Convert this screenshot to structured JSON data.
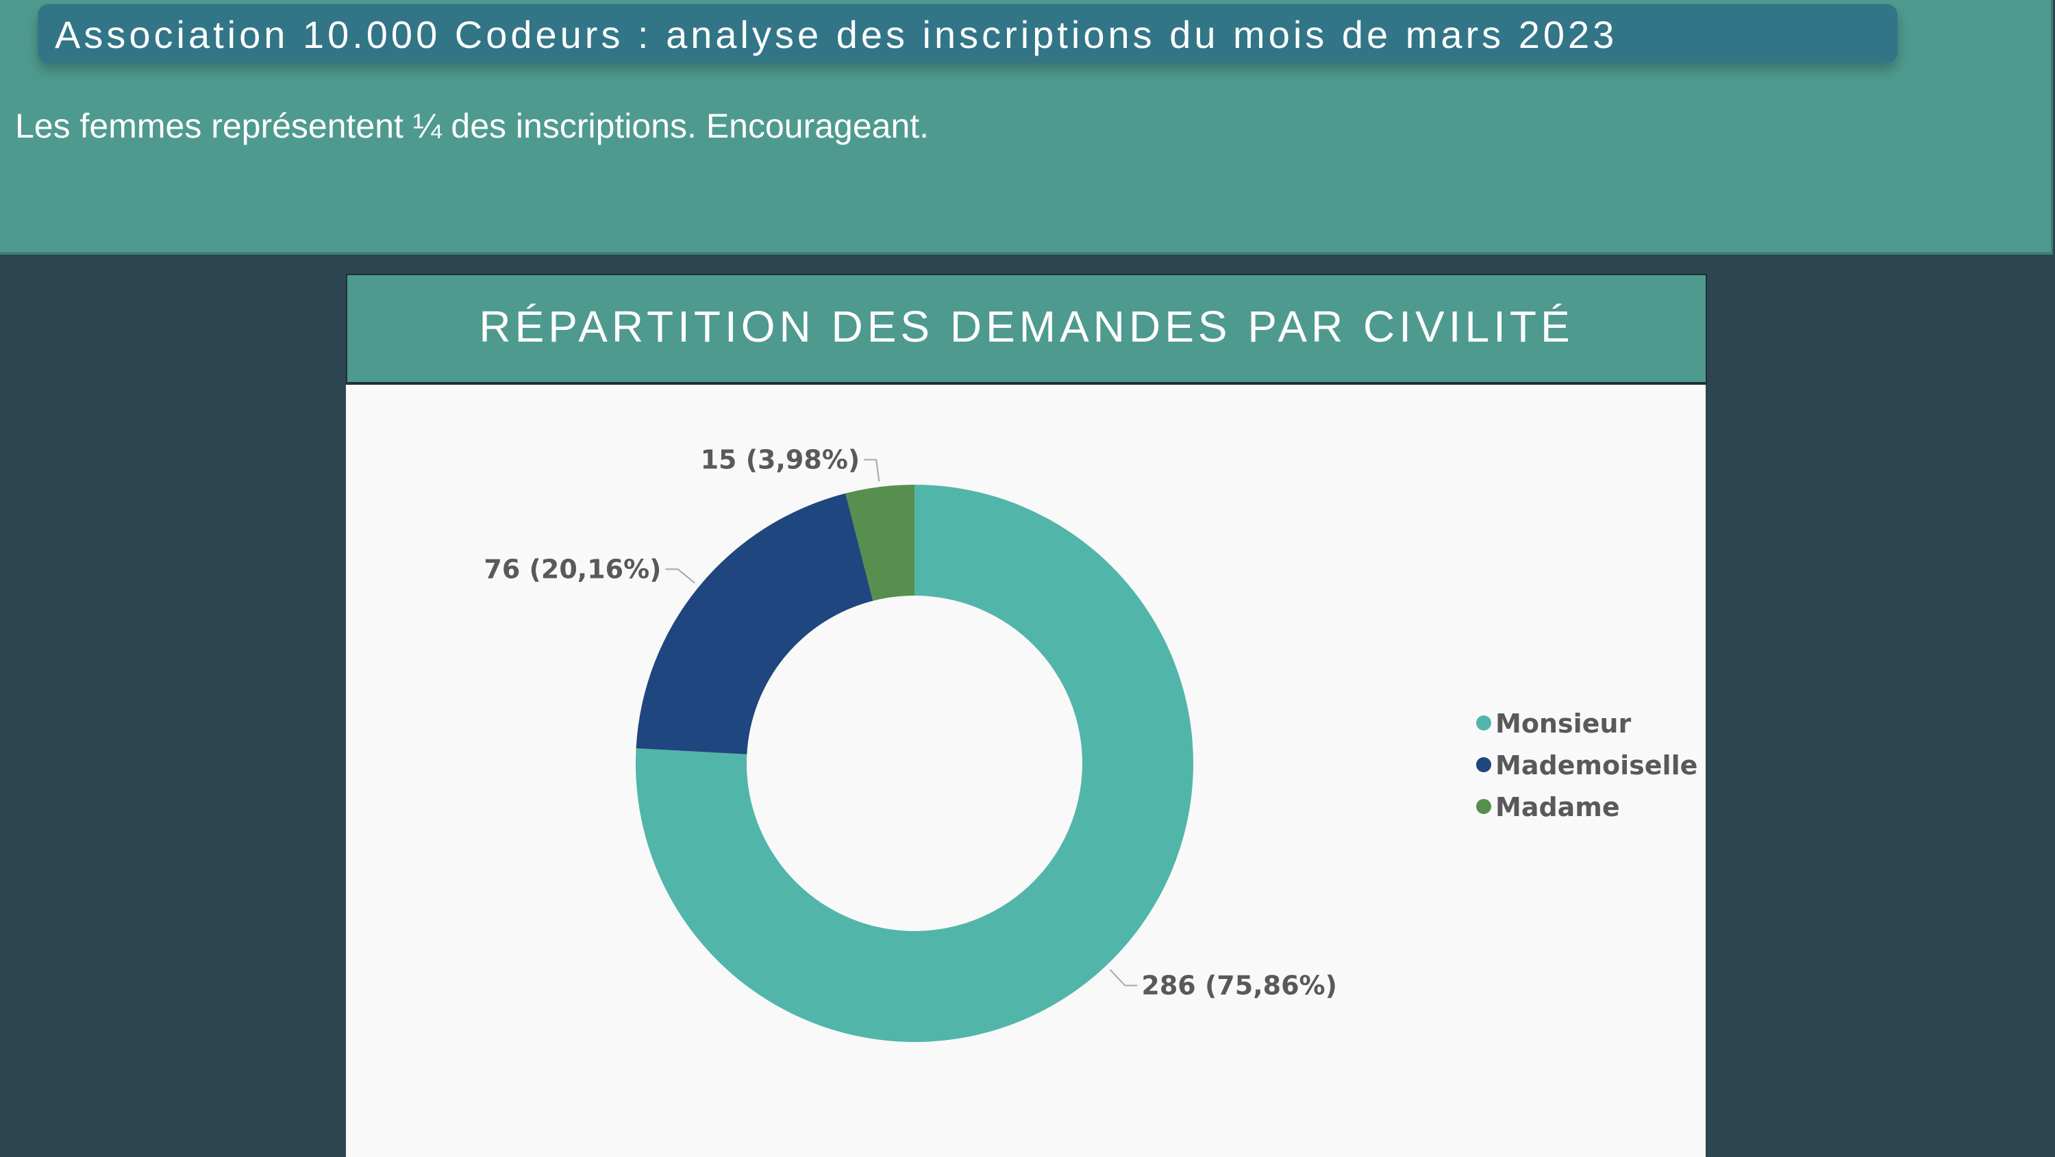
{
  "header": {
    "title": "Association 10.000 Codeurs : analyse des inscriptions du mois de mars 2023",
    "subtitle": "Les femmes représentent ¼ des inscriptions. Encourageant."
  },
  "card": {
    "title": "RÉPARTITION DES DEMANDES PAR CIVILITÉ"
  },
  "chart_data": {
    "type": "pie",
    "subtype": "donut",
    "title": "RÉPARTITION DES DEMANDES PAR CIVILITÉ",
    "categories": [
      "Monsieur",
      "Mademoiselle",
      "Madame"
    ],
    "values": [
      286,
      76,
      15
    ],
    "percentages": [
      75.86,
      20.16,
      3.98
    ],
    "data_labels": [
      "286 (75,86%)",
      "76 (20,16%)",
      "15 (3,98%)"
    ],
    "colors": [
      "#52B5AA",
      "#1F467E",
      "#578F4F"
    ],
    "legend": {
      "placement": "right",
      "entries": [
        "Monsieur",
        "Mademoiselle",
        "Madame"
      ]
    }
  }
}
